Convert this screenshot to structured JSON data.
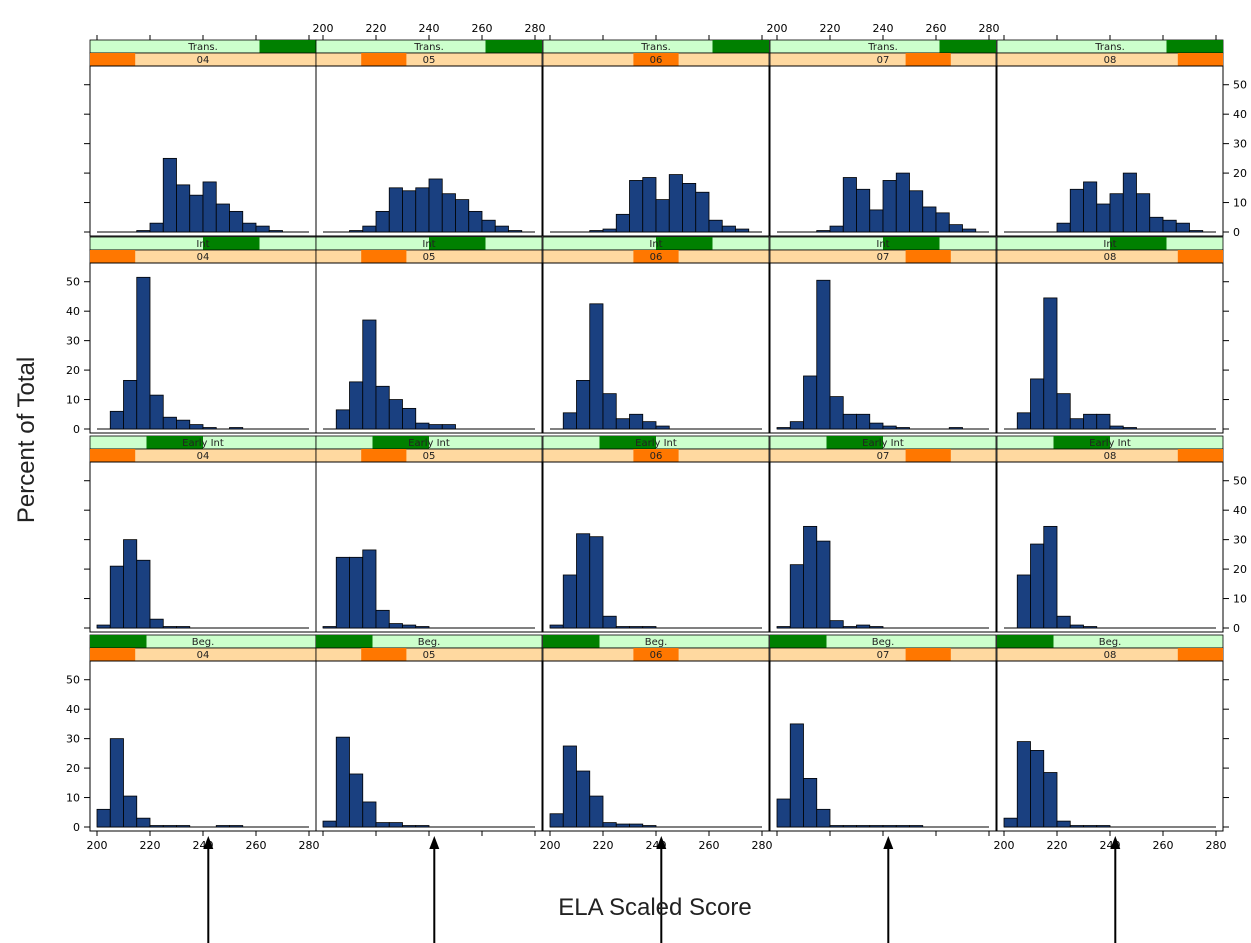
{
  "chart_data": {
    "type": "bar",
    "layout": "lattice histogram grid, 5 columns (grade) x 4 rows (proficiency level)",
    "xlabel": "ELA Scaled Score",
    "ylabel": "Percent of Total",
    "xlim": [
      200,
      280
    ],
    "ylim": [
      0,
      50
    ],
    "x_ticks": [
      200,
      220,
      240,
      260,
      280
    ],
    "y_ticks": [
      0,
      10,
      20,
      30,
      40,
      50
    ],
    "bin_start": 200,
    "bin_width": 5,
    "grades": [
      "04",
      "05",
      "06",
      "07",
      "08"
    ],
    "levels": [
      "Trans.",
      "Int",
      "Early Int",
      "Beg."
    ],
    "colors": {
      "bar_fill": "#1a4080",
      "bar_stroke": "#000000",
      "strip_background": "#ccffcc",
      "strip_indicator": "#008000",
      "grade_strip_background": "#ffd9a0",
      "grade_strip_indicator": "#ff7700"
    },
    "panels": [
      {
        "level": "Trans.",
        "grade": "04",
        "values": [
          0,
          0,
          0,
          0.5,
          3,
          25,
          16,
          12.5,
          17,
          9.5,
          7,
          3,
          2,
          0.5,
          0,
          0
        ]
      },
      {
        "level": "Trans.",
        "grade": "05",
        "values": [
          0,
          0,
          0.5,
          2,
          7,
          15,
          14,
          15,
          18,
          13,
          11,
          7,
          4,
          2,
          0.5,
          0
        ]
      },
      {
        "level": "Trans.",
        "grade": "06",
        "values": [
          0,
          0,
          0,
          0.5,
          1,
          6,
          17.5,
          18.5,
          11,
          19.5,
          16.5,
          13.5,
          4,
          2,
          1,
          0
        ]
      },
      {
        "level": "Trans.",
        "grade": "07",
        "values": [
          0,
          0,
          0,
          0.5,
          2,
          18.5,
          14.5,
          7.5,
          17.5,
          20,
          14,
          8.5,
          6.5,
          2.5,
          1,
          0
        ]
      },
      {
        "level": "Trans.",
        "grade": "08",
        "values": [
          0,
          0,
          0,
          0,
          3,
          14.5,
          17,
          9.5,
          13,
          20,
          13,
          5,
          4,
          3,
          0.5,
          0
        ]
      },
      {
        "level": "Int",
        "grade": "04",
        "values": [
          0,
          6,
          16.5,
          51.5,
          11.5,
          4,
          3,
          1.5,
          0.5,
          0,
          0.5,
          0,
          0,
          0,
          0,
          0
        ]
      },
      {
        "level": "Int",
        "grade": "05",
        "values": [
          0,
          6.5,
          16,
          37,
          14.5,
          10,
          7,
          2,
          1.5,
          1.5,
          0,
          0,
          0,
          0,
          0,
          0
        ]
      },
      {
        "level": "Int",
        "grade": "06",
        "values": [
          0,
          5.5,
          16.5,
          42.5,
          12,
          3.5,
          5,
          2.5,
          1,
          0,
          0,
          0,
          0,
          0,
          0,
          0
        ]
      },
      {
        "level": "Int",
        "grade": "07",
        "values": [
          0.5,
          2.5,
          18,
          50.5,
          11,
          5,
          5,
          2,
          1,
          0.5,
          0,
          0,
          0,
          0.5,
          0,
          0
        ]
      },
      {
        "level": "Int",
        "grade": "08",
        "values": [
          0,
          5.5,
          17,
          44.5,
          12,
          3.5,
          5,
          5,
          1,
          0.5,
          0,
          0,
          0,
          0,
          0,
          0
        ]
      },
      {
        "level": "Early Int",
        "grade": "04",
        "values": [
          1,
          21,
          30,
          23,
          3,
          0.5,
          0.5,
          0,
          0,
          0,
          0,
          0,
          0,
          0,
          0,
          0
        ]
      },
      {
        "level": "Early Int",
        "grade": "05",
        "values": [
          0.5,
          24,
          24,
          26.5,
          6,
          1.5,
          1,
          0.5,
          0,
          0,
          0,
          0,
          0,
          0,
          0,
          0
        ]
      },
      {
        "level": "Early Int",
        "grade": "06",
        "values": [
          1,
          18,
          32,
          31,
          4,
          0.5,
          0.5,
          0.5,
          0,
          0,
          0,
          0,
          0,
          0,
          0,
          0
        ]
      },
      {
        "level": "Early Int",
        "grade": "07",
        "values": [
          0.5,
          21.5,
          34.5,
          29.5,
          2.5,
          0.5,
          1,
          0.5,
          0,
          0,
          0,
          0,
          0,
          0,
          0,
          0
        ]
      },
      {
        "level": "Early Int",
        "grade": "08",
        "values": [
          0,
          18,
          28.5,
          34.5,
          4,
          1,
          0.5,
          0,
          0,
          0,
          0,
          0,
          0,
          0,
          0,
          0
        ]
      },
      {
        "level": "Beg.",
        "grade": "04",
        "values": [
          6,
          30,
          10.5,
          3,
          0.5,
          0.5,
          0.5,
          0,
          0,
          0.5,
          0.5,
          0,
          0,
          0,
          0,
          0
        ]
      },
      {
        "level": "Beg.",
        "grade": "05",
        "values": [
          2,
          30.5,
          18,
          8.5,
          1.5,
          1.5,
          0.5,
          0.5,
          0,
          0,
          0,
          0,
          0,
          0,
          0,
          0
        ]
      },
      {
        "level": "Beg.",
        "grade": "06",
        "values": [
          4.5,
          27.5,
          19,
          10.5,
          1.5,
          1,
          1,
          0.5,
          0,
          0,
          0,
          0,
          0,
          0,
          0,
          0
        ]
      },
      {
        "level": "Beg.",
        "grade": "07",
        "values": [
          9.5,
          35,
          16.5,
          6,
          0.5,
          0.5,
          0.5,
          0.5,
          0.5,
          0.5,
          0.5,
          0,
          0,
          0,
          0,
          0
        ]
      },
      {
        "level": "Beg.",
        "grade": "08",
        "values": [
          3,
          29,
          26,
          18.5,
          2,
          0.5,
          0.5,
          0.5,
          0,
          0,
          0,
          0,
          0,
          0,
          0,
          0
        ]
      }
    ],
    "level_indicator": {
      "Trans.": [
        0.75,
        1.0
      ],
      "Int": [
        0.5,
        0.75
      ],
      "Early Int": [
        0.25,
        0.5
      ],
      "Beg.": [
        0.0,
        0.25
      ]
    },
    "grade_indicator": {
      "04": [
        0.0,
        0.2
      ],
      "05": [
        0.2,
        0.4
      ],
      "06": [
        0.4,
        0.6
      ],
      "07": [
        0.6,
        0.8
      ],
      "08": [
        0.8,
        1.0
      ]
    },
    "arrow_score": 242,
    "arrow_grades": [
      "04",
      "05",
      "06",
      "07",
      "08"
    ]
  }
}
